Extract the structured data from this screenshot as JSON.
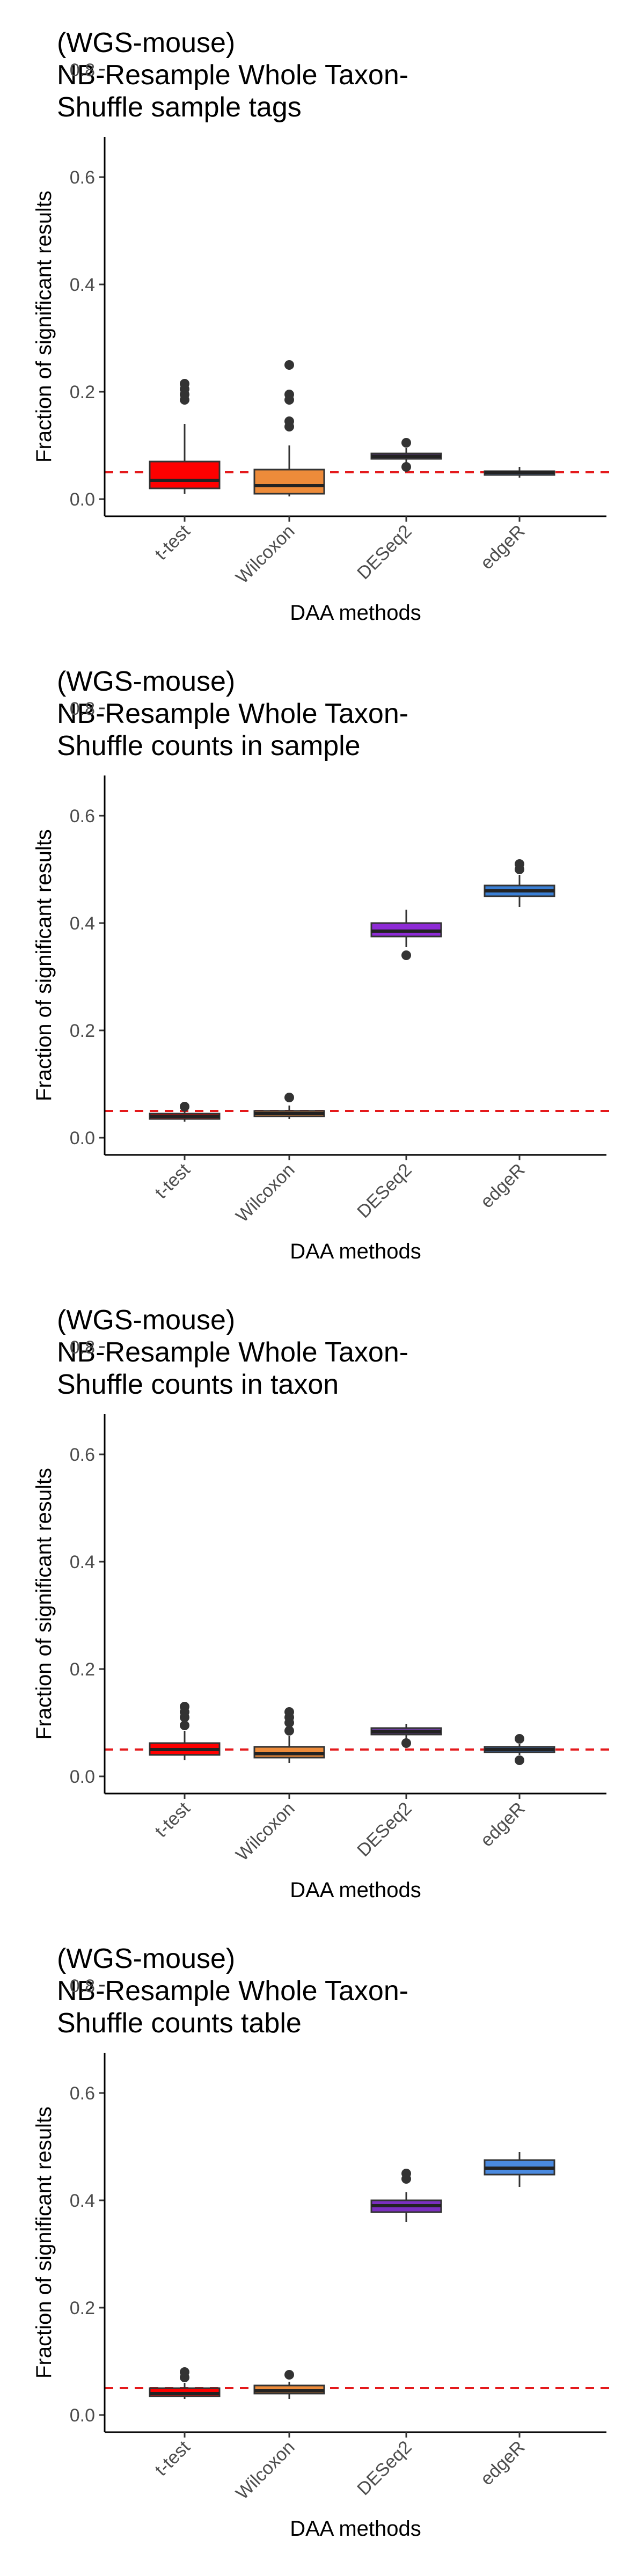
{
  "chart_data": [
    {
      "type": "boxplot",
      "title": [
        "(WGS-mouse)",
        "NB-Resample Whole Taxon-",
        "Shuffle sample tags"
      ],
      "xlabel": "DAA methods",
      "ylabel": "Fraction of significant results",
      "ylim": [
        0,
        0.8
      ],
      "yticks": [
        "0.0",
        "0.2",
        "0.4",
        "0.6",
        "0.8"
      ],
      "reference_line": {
        "value": 0.05,
        "style": "dashed",
        "color": "#e41a1c"
      },
      "grid": false,
      "categories": [
        "t-test",
        "Wilcoxon",
        "DESeq2",
        "edgeR"
      ],
      "boxes": [
        {
          "category": "t-test",
          "color": "#ff0000",
          "whisker_low": 0.01,
          "q1": 0.02,
          "median": 0.035,
          "q3": 0.07,
          "whisker_high": 0.14,
          "outliers": [
            0.185,
            0.195,
            0.205,
            0.215
          ]
        },
        {
          "category": "Wilcoxon",
          "color": "#ed8b3a",
          "whisker_low": 0.005,
          "q1": 0.01,
          "median": 0.025,
          "q3": 0.055,
          "whisker_high": 0.1,
          "outliers": [
            0.135,
            0.145,
            0.185,
            0.195,
            0.25
          ]
        },
        {
          "category": "DESeq2",
          "color": "#6a3d9a",
          "whisker_low": 0.065,
          "q1": 0.075,
          "median": 0.08,
          "q3": 0.085,
          "whisker_high": 0.095,
          "outliers": [
            0.06,
            0.105
          ]
        },
        {
          "category": "edgeR",
          "color": "#3a6fb5",
          "whisker_low": 0.04,
          "q1": 0.045,
          "median": 0.05,
          "q3": 0.052,
          "whisker_high": 0.06,
          "outliers": []
        }
      ]
    },
    {
      "type": "boxplot",
      "title": [
        "(WGS-mouse)",
        "NB-Resample Whole Taxon-",
        "Shuffle counts in sample"
      ],
      "xlabel": "DAA methods",
      "ylabel": "Fraction of significant results",
      "ylim": [
        0,
        0.8
      ],
      "yticks": [
        "0.0",
        "0.2",
        "0.4",
        "0.6",
        "0.8"
      ],
      "reference_line": {
        "value": 0.05,
        "style": "dashed",
        "color": "#e41a1c"
      },
      "grid": false,
      "categories": [
        "t-test",
        "Wilcoxon",
        "DESeq2",
        "edgeR"
      ],
      "boxes": [
        {
          "category": "t-test",
          "color": "#ff0000",
          "whisker_low": 0.03,
          "q1": 0.035,
          "median": 0.04,
          "q3": 0.045,
          "whisker_high": 0.05,
          "outliers": [
            0.058
          ]
        },
        {
          "category": "Wilcoxon",
          "color": "#ed8b3a",
          "whisker_low": 0.035,
          "q1": 0.04,
          "median": 0.045,
          "q3": 0.05,
          "whisker_high": 0.06,
          "outliers": [
            0.075
          ]
        },
        {
          "category": "DESeq2",
          "color": "#8e2bd6",
          "whisker_low": 0.355,
          "q1": 0.375,
          "median": 0.385,
          "q3": 0.4,
          "whisker_high": 0.425,
          "outliers": [
            0.34
          ]
        },
        {
          "category": "edgeR",
          "color": "#3a7fd5",
          "whisker_low": 0.43,
          "q1": 0.45,
          "median": 0.46,
          "q3": 0.47,
          "whisker_high": 0.49,
          "outliers": [
            0.5,
            0.51
          ]
        }
      ]
    },
    {
      "type": "boxplot",
      "title": [
        "(WGS-mouse)",
        "NB-Resample Whole Taxon-",
        "Shuffle counts in taxon"
      ],
      "xlabel": "DAA methods",
      "ylabel": "Fraction of significant results",
      "ylim": [
        0,
        0.8
      ],
      "yticks": [
        "0.0",
        "0.2",
        "0.4",
        "0.6",
        "0.8"
      ],
      "reference_line": {
        "value": 0.05,
        "style": "dashed",
        "color": "#e41a1c"
      },
      "grid": false,
      "categories": [
        "t-test",
        "Wilcoxon",
        "DESeq2",
        "edgeR"
      ],
      "boxes": [
        {
          "category": "t-test",
          "color": "#ff0000",
          "whisker_low": 0.03,
          "q1": 0.04,
          "median": 0.05,
          "q3": 0.062,
          "whisker_high": 0.085,
          "outliers": [
            0.095,
            0.11,
            0.12,
            0.13
          ]
        },
        {
          "category": "Wilcoxon",
          "color": "#ed8b3a",
          "whisker_low": 0.025,
          "q1": 0.035,
          "median": 0.042,
          "q3": 0.055,
          "whisker_high": 0.075,
          "outliers": [
            0.085,
            0.1,
            0.11,
            0.12
          ]
        },
        {
          "category": "DESeq2",
          "color": "#6a3d9a",
          "whisker_low": 0.07,
          "q1": 0.078,
          "median": 0.083,
          "q3": 0.09,
          "whisker_high": 0.098,
          "outliers": [
            0.062
          ]
        },
        {
          "category": "edgeR",
          "color": "#3a6fb5",
          "whisker_low": 0.04,
          "q1": 0.045,
          "median": 0.05,
          "q3": 0.055,
          "whisker_high": 0.06,
          "outliers": [
            0.03,
            0.07
          ]
        }
      ]
    },
    {
      "type": "boxplot",
      "title": [
        "(WGS-mouse)",
        "NB-Resample Whole Taxon-",
        "Shuffle counts table"
      ],
      "xlabel": "DAA methods",
      "ylabel": "Fraction of significant results",
      "ylim": [
        0,
        0.8
      ],
      "yticks": [
        "0.0",
        "0.2",
        "0.4",
        "0.6",
        "0.8"
      ],
      "reference_line": {
        "value": 0.05,
        "style": "dashed",
        "color": "#e41a1c"
      },
      "grid": false,
      "categories": [
        "t-test",
        "Wilcoxon",
        "DESeq2",
        "edgeR"
      ],
      "boxes": [
        {
          "category": "t-test",
          "color": "#ff0000",
          "whisker_low": 0.03,
          "q1": 0.035,
          "median": 0.04,
          "q3": 0.05,
          "whisker_high": 0.06,
          "outliers": [
            0.07,
            0.08
          ]
        },
        {
          "category": "Wilcoxon",
          "color": "#ed8b3a",
          "whisker_low": 0.03,
          "q1": 0.04,
          "median": 0.045,
          "q3": 0.055,
          "whisker_high": 0.062,
          "outliers": [
            0.075
          ]
        },
        {
          "category": "DESeq2",
          "color": "#7b2fbf",
          "whisker_low": 0.36,
          "q1": 0.378,
          "median": 0.39,
          "q3": 0.4,
          "whisker_high": 0.415,
          "outliers": [
            0.44,
            0.45
          ]
        },
        {
          "category": "edgeR",
          "color": "#4a8ae0",
          "whisker_low": 0.425,
          "q1": 0.448,
          "median": 0.46,
          "q3": 0.475,
          "whisker_high": 0.49,
          "outliers": []
        }
      ]
    }
  ]
}
